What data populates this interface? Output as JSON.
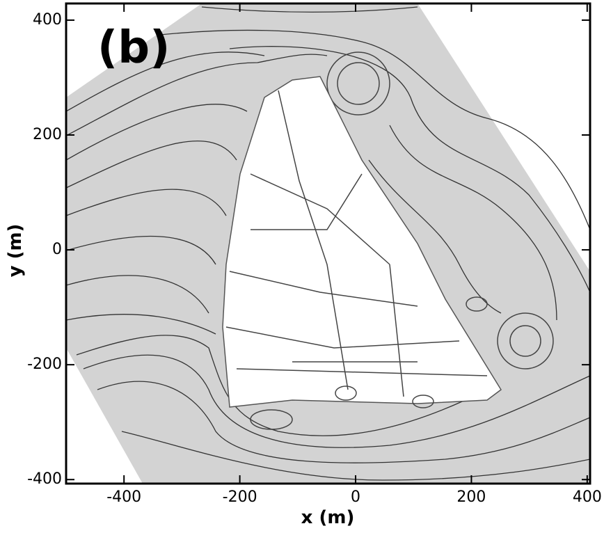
{
  "chart_data": {
    "type": "streamline",
    "annotation": "(b)",
    "xlabel": "x (m)",
    "ylabel": "y (m)",
    "xlim": [
      -500,
      405
    ],
    "ylim": [
      -407,
      429
    ],
    "xticks": [
      -400,
      -200,
      0,
      200,
      400
    ],
    "yticks": [
      -400,
      -200,
      0,
      200,
      400
    ]
  }
}
